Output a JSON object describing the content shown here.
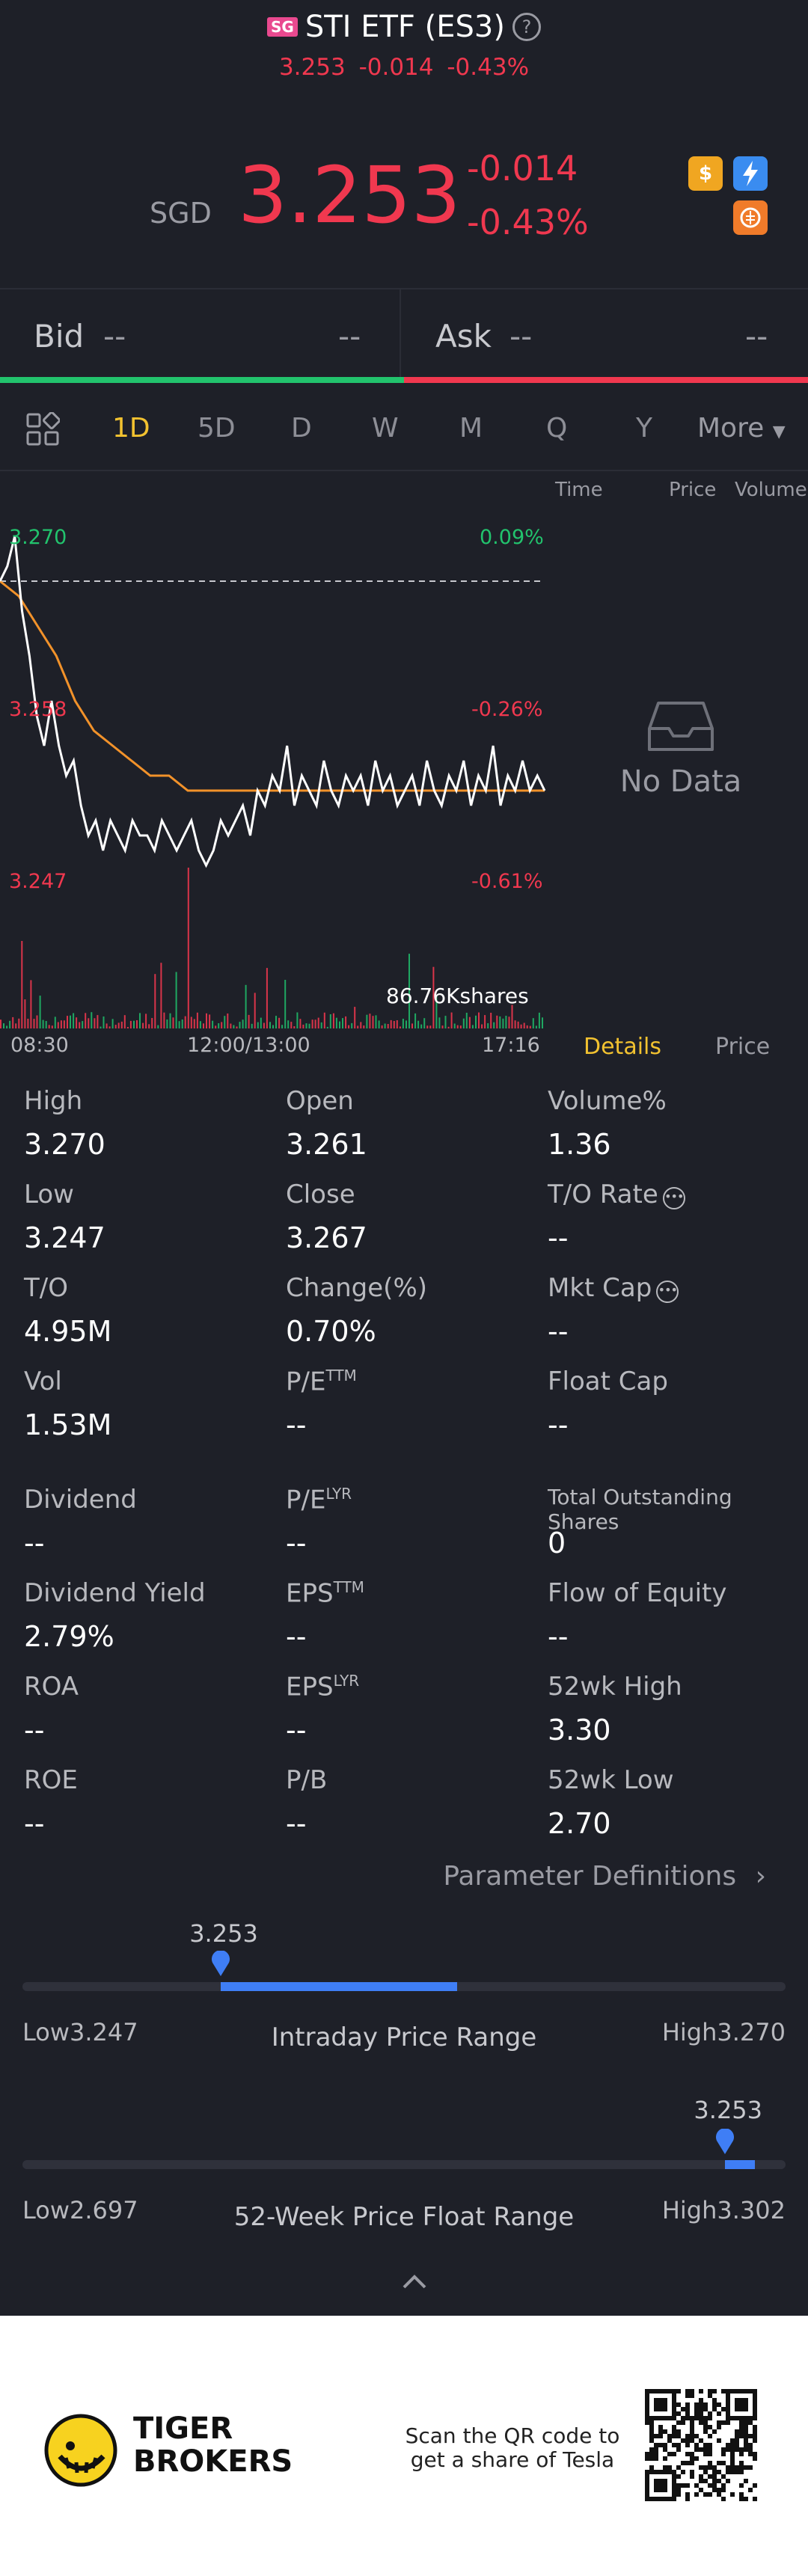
{
  "header": {
    "market_badge": "SG",
    "title": "STI ETF (ES3)",
    "help_icon": "question-circle-icon",
    "sub_price": "3.253",
    "sub_change": "-0.014",
    "sub_change_pct": "-0.43%"
  },
  "quote": {
    "currency": "SGD",
    "price": "3.253",
    "change": "-0.014",
    "change_pct": "-0.43%",
    "icons": [
      "dollar-icon",
      "lightning-icon",
      "brain-icon"
    ]
  },
  "bidask": {
    "bid_label": "Bid",
    "bid_price": "--",
    "bid_size": "--",
    "ask_label": "Ask",
    "ask_price": "--",
    "ask_size": "--"
  },
  "tabs": {
    "items": [
      "1D",
      "5D",
      "D",
      "W",
      "M",
      "Q",
      "Y",
      "More"
    ],
    "active": "1D"
  },
  "side_panel": {
    "headers": [
      "Time",
      "Price",
      "Volume"
    ],
    "empty_text": "No Data",
    "details_tab": "Details",
    "price_tab": "Price"
  },
  "chart_data": {
    "type": "line",
    "ylabels_left": [
      "3.270",
      "3.258",
      "3.247"
    ],
    "ylabels_right": [
      "0.09%",
      "-0.26%",
      "-0.61%"
    ],
    "xlabels": [
      "08:30",
      "12:00/13:00",
      "17:16"
    ],
    "ylim": [
      3.247,
      3.27
    ],
    "prev_close": 3.267,
    "volume_label": "86.76Kshares",
    "series": [
      {
        "values": [
          3.267,
          3.268,
          3.27,
          3.265,
          3.262,
          3.258,
          3.256,
          3.259,
          3.256,
          3.254,
          3.255,
          3.252,
          3.25,
          3.251,
          3.249,
          3.251,
          3.25,
          3.249,
          3.251,
          3.25,
          3.25,
          3.249,
          3.251,
          3.25,
          3.249,
          3.25,
          3.251,
          3.249,
          3.248,
          3.249,
          3.251,
          3.25,
          3.251,
          3.252,
          3.25,
          3.253,
          3.252,
          3.254,
          3.253,
          3.256,
          3.252,
          3.254,
          3.253,
          3.252,
          3.255,
          3.253,
          3.252,
          3.254,
          3.253,
          3.254,
          3.252,
          3.255,
          3.253,
          3.254,
          3.252,
          3.253,
          3.254,
          3.252,
          3.255,
          3.253,
          3.252,
          3.254,
          3.253,
          3.255,
          3.252,
          3.254,
          3.253,
          3.256,
          3.252,
          3.254,
          3.253,
          3.255,
          3.253,
          3.254,
          3.253
        ]
      },
      {
        "values": [
          3.267,
          3.266,
          3.264,
          3.262,
          3.259,
          3.257,
          3.256,
          3.255,
          3.254,
          3.254,
          3.253,
          3.253,
          3.253,
          3.253,
          3.253,
          3.253,
          3.253,
          3.253,
          3.253,
          3.253,
          3.253,
          3.253,
          3.253,
          3.253,
          3.253,
          3.253,
          3.253,
          3.253,
          3.253,
          3.253
        ]
      }
    ]
  },
  "stats": {
    "col1": [
      {
        "label": "High",
        "value": "3.270"
      },
      {
        "label": "Low",
        "value": "3.247"
      },
      {
        "label": "T/O",
        "value": "4.95M"
      },
      {
        "label": "Vol",
        "value": "1.53M"
      },
      {
        "label": "Dividend",
        "value": "--"
      },
      {
        "label": "Dividend Yield",
        "value": "2.79%"
      },
      {
        "label": "ROA",
        "value": "--"
      },
      {
        "label": "ROE",
        "value": "--"
      }
    ],
    "col2": [
      {
        "label": "Open",
        "value": "3.261"
      },
      {
        "label": "Close",
        "value": "3.267"
      },
      {
        "label": "Change(%)",
        "value": "0.70%"
      },
      {
        "label": "P/E",
        "sup": "TTM",
        "value": "--"
      },
      {
        "label": "P/E",
        "sup": "LYR",
        "value": "--"
      },
      {
        "label": "EPS",
        "sup": "TTM",
        "value": "--"
      },
      {
        "label": "EPS",
        "sup": "LYR",
        "value": "--"
      },
      {
        "label": "P/B",
        "value": "--"
      }
    ],
    "col3": [
      {
        "label": "Volume%",
        "value": "1.36"
      },
      {
        "label": "T/O Rate",
        "value": "--"
      },
      {
        "label": "Mkt Cap",
        "value": "--"
      },
      {
        "label": "Float Cap",
        "value": "--"
      },
      {
        "label": "Total Outstanding Shares",
        "value": "0"
      },
      {
        "label": "Flow of Equity",
        "value": "--"
      },
      {
        "label": "52wk High",
        "value": "3.30"
      },
      {
        "label": "52wk Low",
        "value": "2.70"
      }
    ],
    "param_link": "Parameter Definitions"
  },
  "ranges": {
    "intraday": {
      "current": "3.253",
      "low": "Low3.247",
      "high": "High3.270",
      "title": "Intraday Price Range",
      "position": 0.26,
      "fill_to": 0.57
    },
    "week52": {
      "current": "3.253",
      "low": "Low2.697",
      "high": "High3.302",
      "title": "52-Week Price Float Range",
      "position": 0.921,
      "fill_to": 0.96
    }
  },
  "footer": {
    "brand_line1": "TIGER",
    "brand_line2": "BROKERS",
    "scan_line1": "Scan the QR code to",
    "scan_line2": "get a share of Tesla"
  }
}
